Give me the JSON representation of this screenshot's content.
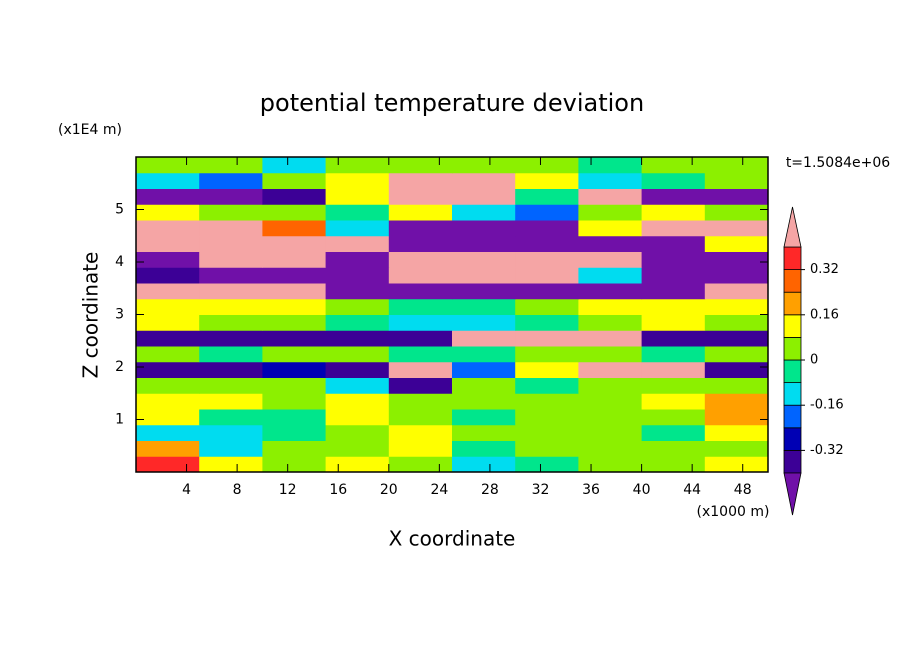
{
  "chart_data": {
    "type": "contourf",
    "title": "potential temperature deviation",
    "xlabel": "X coordinate",
    "ylabel": "Z coordinate",
    "xunit": "(x1000 m)",
    "yunit": "(x1E4 m)",
    "time_label": "t=1.5084e+06",
    "xlim": [
      0,
      50
    ],
    "ylim": [
      0,
      6
    ],
    "xticks": [
      4,
      8,
      12,
      16,
      20,
      24,
      28,
      32,
      36,
      40,
      44,
      48
    ],
    "yticks": [
      1,
      2,
      3,
      4,
      5
    ],
    "x": [
      2.5,
      7.5,
      12.5,
      17.5,
      22.5,
      27.5,
      32.5,
      37.5,
      42.5,
      47.5
    ],
    "y": [
      0.15,
      0.45,
      0.75,
      1.05,
      1.35,
      1.65,
      1.95,
      2.25,
      2.55,
      2.85,
      3.15,
      3.45,
      3.75,
      4.05,
      4.35,
      4.65,
      4.95,
      5.25,
      5.55,
      5.85
    ],
    "values": [
      [
        0.36,
        0.12,
        0.04,
        0.12,
        0.04,
        -0.12,
        -0.04,
        0.04,
        0.04,
        0.12
      ],
      [
        0.2,
        -0.12,
        0.04,
        0.04,
        0.12,
        -0.04,
        0.04,
        0.04,
        0.04,
        0.04
      ],
      [
        -0.12,
        -0.12,
        -0.04,
        0.04,
        0.12,
        0.04,
        0.04,
        0.04,
        -0.04,
        0.12
      ],
      [
        0.12,
        -0.04,
        -0.04,
        0.12,
        0.04,
        -0.04,
        0.04,
        0.04,
        0.04,
        0.2
      ],
      [
        0.12,
        0.12,
        0.04,
        0.12,
        0.04,
        0.04,
        0.04,
        0.04,
        0.12,
        0.2
      ],
      [
        0.04,
        0.04,
        0.04,
        -0.12,
        -0.36,
        0.04,
        -0.04,
        0.04,
        0.04,
        0.04
      ],
      [
        -0.36,
        -0.36,
        -0.28,
        -0.36,
        0.45,
        -0.2,
        0.12,
        0.45,
        0.45,
        -0.36
      ],
      [
        0.04,
        -0.04,
        0.04,
        0.04,
        -0.04,
        -0.04,
        0.04,
        0.04,
        -0.04,
        0.04
      ],
      [
        -0.36,
        -0.36,
        -0.36,
        -0.36,
        -0.36,
        0.45,
        0.45,
        0.45,
        -0.36,
        -0.36
      ],
      [
        0.12,
        0.04,
        0.04,
        -0.04,
        -0.12,
        -0.12,
        -0.04,
        0.04,
        0.12,
        0.04
      ],
      [
        0.12,
        0.12,
        0.12,
        0.04,
        -0.04,
        -0.04,
        0.04,
        0.12,
        0.12,
        0.12
      ],
      [
        0.45,
        0.45,
        0.45,
        -0.45,
        -0.45,
        -0.45,
        -0.45,
        -0.45,
        -0.45,
        0.45
      ],
      [
        -0.36,
        -0.45,
        -0.45,
        -0.45,
        0.45,
        0.45,
        0.45,
        -0.12,
        -0.45,
        -0.45
      ],
      [
        -0.45,
        0.45,
        0.45,
        -0.45,
        0.45,
        0.45,
        0.45,
        0.45,
        -0.45,
        -0.45
      ],
      [
        0.45,
        0.45,
        0.45,
        0.45,
        -0.45,
        -0.45,
        -0.45,
        -0.45,
        -0.45,
        0.12
      ],
      [
        0.45,
        0.45,
        0.28,
        -0.12,
        -0.45,
        -0.45,
        -0.45,
        0.12,
        0.45,
        0.45
      ],
      [
        0.12,
        0.04,
        0.04,
        -0.04,
        0.12,
        -0.12,
        -0.2,
        0.04,
        0.12,
        0.04
      ],
      [
        -0.45,
        -0.45,
        -0.36,
        0.12,
        0.45,
        0.45,
        -0.04,
        0.45,
        -0.45,
        -0.45
      ],
      [
        -0.12,
        -0.2,
        0.04,
        0.12,
        0.45,
        0.45,
        0.12,
        -0.12,
        -0.04,
        0.04
      ],
      [
        0.04,
        0.04,
        -0.12,
        0.04,
        0.04,
        0.04,
        0.04,
        -0.04,
        0.04,
        0.04
      ]
    ],
    "levels": [
      -0.4,
      -0.32,
      -0.24,
      -0.16,
      -0.08,
      0,
      0.08,
      0.16,
      0.24,
      0.32,
      0.4
    ],
    "colors": [
      "#7010a8",
      "#3c0096",
      "#0000b4",
      "#0064ff",
      "#00dcf0",
      "#00e68c",
      "#8cf000",
      "#ffff00",
      "#ffa000",
      "#ff6400",
      "#ff2828",
      "#f5a5a5"
    ],
    "colorbar_ticks": [
      -0.32,
      -0.16,
      0,
      0.16,
      0.32
    ]
  }
}
